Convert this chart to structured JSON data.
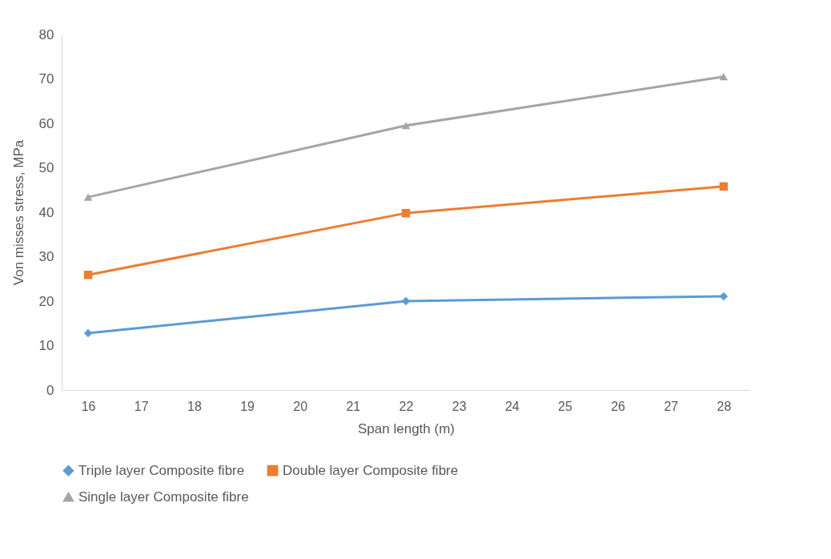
{
  "chart_data": {
    "type": "line",
    "xlabel": "Span length (m)",
    "ylabel": "Von misses stress, MPa",
    "x": [
      16,
      22,
      28
    ],
    "xlim": [
      15.5,
      28.5
    ],
    "xticks": [
      16,
      17,
      18,
      19,
      20,
      21,
      22,
      23,
      24,
      25,
      26,
      27,
      28
    ],
    "ylim": [
      0,
      80
    ],
    "yticks": [
      0,
      10,
      20,
      30,
      40,
      50,
      60,
      70,
      80
    ],
    "grid": false,
    "legend": "bottom",
    "line_style": "solid",
    "series": [
      {
        "name": "Triple layer Composite fibre",
        "color": "#5b9bd5",
        "marker": "diamond",
        "values": [
          12.8,
          20.0,
          21.1
        ]
      },
      {
        "name": "Double layer Composite fibre",
        "color": "#ed7d31",
        "marker": "square",
        "values": [
          25.9,
          39.8,
          45.8
        ]
      },
      {
        "name": "Single layer Composite fibre",
        "color": "#a5a5a5",
        "marker": "triangle",
        "values": [
          43.4,
          59.5,
          70.5
        ]
      }
    ]
  }
}
